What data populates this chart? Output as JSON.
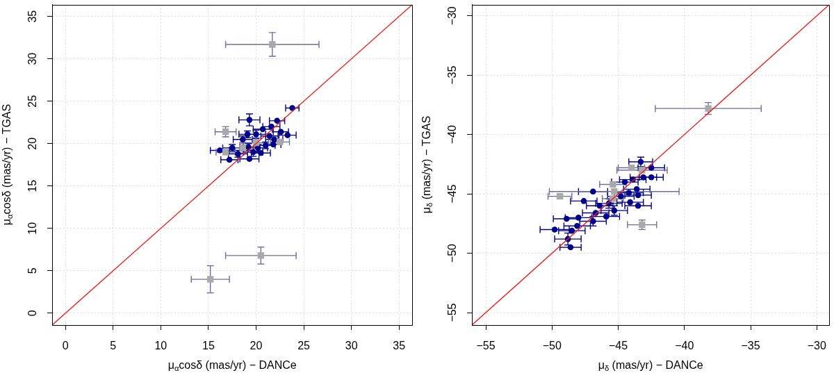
{
  "chart_data": [
    {
      "type": "scatter",
      "xlabel": "μ$_{α}$cosδ (mas/yr) − DANCe",
      "ylabel": "μ$_{α}$cosδ (mas/yr) − TGAS",
      "xlim": [
        -1.4,
        36.4
      ],
      "ylim": [
        -1.4,
        36.4
      ],
      "xticks": [
        0,
        5,
        10,
        15,
        20,
        25,
        30,
        35
      ],
      "yticks": [
        0,
        5,
        10,
        15,
        20,
        25,
        30,
        35
      ],
      "grid": true,
      "series": [
        {
          "color": "#00008b",
          "marker": "circle",
          "x": [
            23.8,
            19.3,
            22.2,
            23.3,
            22.6,
            21.6,
            20.7,
            20.0,
            19.1,
            21.4,
            21.9,
            21.8,
            20.2,
            19.2,
            19.7,
            18.1,
            17.5,
            16.2,
            17.2,
            19.3,
            18.6,
            21.0,
            20.5
          ],
          "values": [
            24.2,
            22.8,
            22.7,
            21.0,
            21.4,
            22.0,
            21.7,
            21.1,
            21.1,
            20.9,
            20.5,
            19.9,
            19.5,
            19.6,
            19.0,
            18.8,
            19.5,
            19.2,
            18.1,
            18.2,
            20.5,
            19.8,
            18.9
          ],
          "xerrors": [
            0.7,
            1.1,
            0.8,
            0.9,
            0.8,
            0.9,
            1.0,
            1.0,
            0.9,
            0.9,
            0.9,
            0.8,
            1.0,
            0.9,
            1.0,
            1.0,
            1.0,
            1.0,
            0.9,
            1.0,
            1.0,
            1.0,
            1.0
          ],
          "errors": [
            null,
            0.7,
            null,
            null,
            null,
            null,
            null,
            0.5,
            0.4,
            null,
            null,
            null,
            0.4,
            0.4,
            0.5,
            0.4,
            0.4,
            null,
            null,
            null,
            0.4,
            0.4,
            null
          ]
        },
        {
          "color": "#a9a9a9",
          "marker": "square",
          "x": [
            21.7,
            20.5,
            15.2,
            16.8,
            16.8,
            18.6,
            20.0,
            22.5
          ],
          "values": [
            31.7,
            6.8,
            4.0,
            21.4,
            19.0,
            19.5,
            20.1,
            20.2
          ],
          "xerrors": [
            4.9,
            3.7,
            2.0,
            1.1,
            1.0,
            1.2,
            1.3,
            1.0
          ],
          "errors": [
            1.4,
            1.0,
            1.6,
            0.6,
            null,
            0.6,
            0.6,
            null
          ]
        },
        {
          "type": "line",
          "color": "#ee2020",
          "marker": "none",
          "x": [
            -1.4,
            36.4
          ],
          "values": [
            -1.4,
            36.4
          ]
        }
      ]
    },
    {
      "type": "scatter",
      "xlabel": "μ$_{δ}$ (mas/yr) − DANCe",
      "ylabel": "μ$_{δ}$ (mas/yr) − TGAS",
      "xlim": [
        -56.05,
        -29.05
      ],
      "ylim": [
        -56.05,
        -29.05
      ],
      "xticks": [
        -55,
        -50,
        -45,
        -40,
        -35,
        -30
      ],
      "yticks": [
        -55,
        -50,
        -45,
        -40,
        -35,
        -30
      ],
      "grid": true,
      "series": [
        {
          "color": "#00008b",
          "marker": "circle",
          "x": [
            -43.3,
            -42.5,
            -42.5,
            -43.1,
            -43.9,
            -44.5,
            -43.6,
            -44.2,
            -44.8,
            -46.9,
            -47.6,
            -46.4,
            -45.7,
            -44.1,
            -43.5,
            -43.5,
            -45.3,
            -45.9,
            -46.7,
            -46.9,
            -48.0,
            -48.9,
            -48.1,
            -48.5,
            -49.8,
            -48.8,
            -48.6
          ],
          "values": [
            -42.3,
            -42.8,
            -43.6,
            -43.6,
            -43.8,
            -44.0,
            -44.6,
            -44.9,
            -45.2,
            -44.8,
            -45.6,
            -46.0,
            -45.8,
            -45.7,
            -46.0,
            -45.1,
            -46.4,
            -46.9,
            -46.6,
            -47.3,
            -47.0,
            -47.1,
            -47.7,
            -48.1,
            -48.0,
            -48.8,
            -49.5
          ],
          "xerrors": [
            0.9,
            1.0,
            0.9,
            1.0,
            1.0,
            1.0,
            1.0,
            1.1,
            1.0,
            1.1,
            1.0,
            1.0,
            1.0,
            1.0,
            1.0,
            1.0,
            1.0,
            1.0,
            1.0,
            1.0,
            1.0,
            1.0,
            1.0,
            1.0,
            1.1,
            1.0,
            0.8
          ],
          "errors": [
            0.4,
            null,
            null,
            null,
            null,
            null,
            null,
            null,
            null,
            null,
            null,
            null,
            0.4,
            null,
            null,
            null,
            0.4,
            null,
            null,
            0.4,
            null,
            null,
            null,
            null,
            null,
            0.5,
            null
          ]
        },
        {
          "color": "#a9a9a9",
          "marker": "square",
          "x": [
            -38.2,
            -49.4,
            -43.2,
            -44.0,
            -43.2,
            -45.4,
            -45.3,
            -45.4
          ],
          "values": [
            -37.8,
            -45.2,
            -47.6,
            -42.8,
            -43.0,
            -44.2,
            -44.8,
            -45.4
          ],
          "xerrors": [
            4.0,
            0.9,
            1.1,
            1.0,
            1.9,
            1.0,
            4.9,
            0.8
          ],
          "errors": [
            0.5,
            null,
            0.4,
            null,
            null,
            null,
            null,
            null
          ]
        },
        {
          "type": "line",
          "color": "#ee2020",
          "marker": "none",
          "x": [
            -56.05,
            -29.05
          ],
          "values": [
            -56.05,
            -29.05
          ]
        }
      ]
    }
  ]
}
